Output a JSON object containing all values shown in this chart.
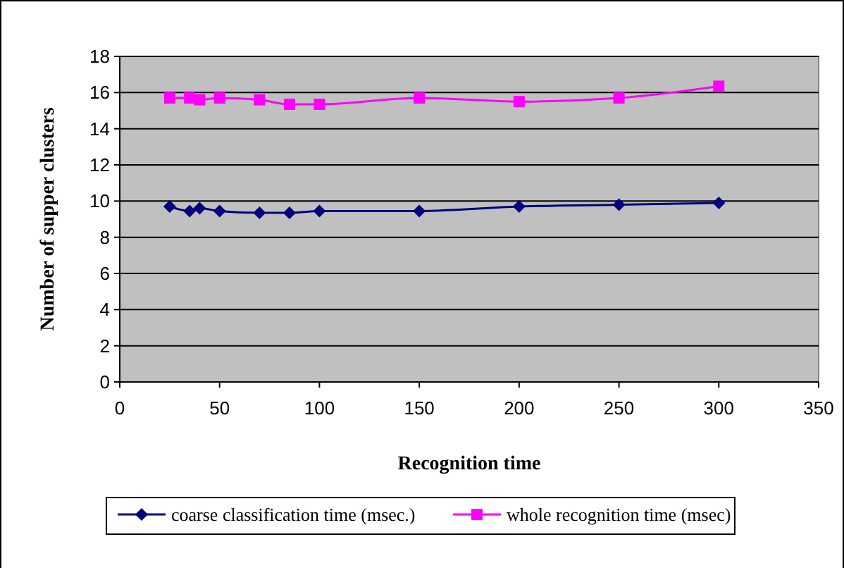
{
  "chart_data": {
    "type": "line",
    "xlabel": "Recognition time",
    "ylabel": "Number of supper clusters",
    "x": [
      25,
      35,
      40,
      50,
      70,
      85,
      100,
      150,
      200,
      250,
      300
    ],
    "series": [
      {
        "name": "coarse classification time (msec.)",
        "color": "#000080",
        "marker": "diamond",
        "values": [
          9.7,
          9.45,
          9.6,
          9.45,
          9.35,
          9.35,
          9.45,
          9.45,
          9.7,
          9.8,
          9.9
        ]
      },
      {
        "name": "whole recognition time (msec)",
        "color": "#ff00ff",
        "marker": "square",
        "values": [
          15.7,
          15.7,
          15.6,
          15.7,
          15.6,
          15.35,
          15.35,
          15.7,
          15.5,
          15.7,
          16.35
        ]
      }
    ],
    "xlim": [
      0,
      350
    ],
    "xticks": [
      0,
      50,
      100,
      150,
      200,
      250,
      300,
      350
    ],
    "ylim": [
      0,
      18
    ],
    "yticks": [
      0,
      2,
      4,
      6,
      8,
      10,
      12,
      14,
      16,
      18
    ],
    "grid": "y",
    "legend": "bottom"
  }
}
